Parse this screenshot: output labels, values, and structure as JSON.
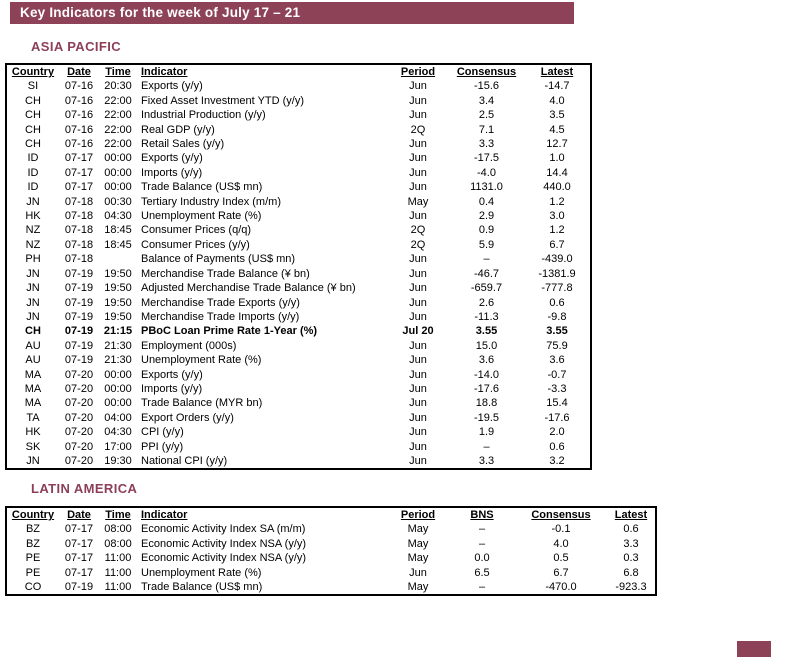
{
  "title_bar": {
    "text": "Key Indicators for the week of July 17 – 21"
  },
  "colors": {
    "accent_maroon": "#8E4257",
    "section_text": "#8C3F57",
    "table_border": "#000000",
    "title_text": "#FFFFFF"
  },
  "sections": [
    {
      "label": "ASIA PACIFIC",
      "columns": [
        "Country",
        "Date",
        "Time",
        "Indicator",
        "Period",
        "Consensus",
        "Latest"
      ],
      "bold_row_index": 17,
      "rows": [
        [
          "SI",
          "07-16",
          "20:30",
          "Exports (y/y)",
          "Jun",
          "-15.6",
          "-14.7"
        ],
        [
          "CH",
          "07-16",
          "22:00",
          "Fixed Asset Investment YTD (y/y)",
          "Jun",
          "3.4",
          "4.0"
        ],
        [
          "CH",
          "07-16",
          "22:00",
          "Industrial Production (y/y)",
          "Jun",
          "2.5",
          "3.5"
        ],
        [
          "CH",
          "07-16",
          "22:00",
          "Real GDP (y/y)",
          "2Q",
          "7.1",
          "4.5"
        ],
        [
          "CH",
          "07-16",
          "22:00",
          "Retail Sales (y/y)",
          "Jun",
          "3.3",
          "12.7"
        ],
        [
          "ID",
          "07-17",
          "00:00",
          "Exports (y/y)",
          "Jun",
          "-17.5",
          "1.0"
        ],
        [
          "ID",
          "07-17",
          "00:00",
          "Imports (y/y)",
          "Jun",
          "-4.0",
          "14.4"
        ],
        [
          "ID",
          "07-17",
          "00:00",
          "Trade Balance (US$ mn)",
          "Jun",
          "1131.0",
          "440.0"
        ],
        [
          "JN",
          "07-18",
          "00:30",
          "Tertiary Industry Index (m/m)",
          "May",
          "0.4",
          "1.2"
        ],
        [
          "HK",
          "07-18",
          "04:30",
          "Unemployment Rate (%)",
          "Jun",
          "2.9",
          "3.0"
        ],
        [
          "NZ",
          "07-18",
          "18:45",
          "Consumer Prices (q/q)",
          "2Q",
          "0.9",
          "1.2"
        ],
        [
          "NZ",
          "07-18",
          "18:45",
          "Consumer Prices (y/y)",
          "2Q",
          "5.9",
          "6.7"
        ],
        [
          "PH",
          "07-18",
          "",
          "Balance of Payments (US$ mn)",
          "Jun",
          "–",
          "-439.0"
        ],
        [
          "JN",
          "07-19",
          "19:50",
          "Merchandise Trade Balance (¥ bn)",
          "Jun",
          "-46.7",
          "-1381.9"
        ],
        [
          "JN",
          "07-19",
          "19:50",
          "Adjusted Merchandise Trade Balance (¥ bn)",
          "Jun",
          "-659.7",
          "-777.8"
        ],
        [
          "JN",
          "07-19",
          "19:50",
          "Merchandise Trade Exports (y/y)",
          "Jun",
          "2.6",
          "0.6"
        ],
        [
          "JN",
          "07-19",
          "19:50",
          "Merchandise Trade Imports (y/y)",
          "Jun",
          "-11.3",
          "-9.8"
        ],
        [
          "CH",
          "07-19",
          "21:15",
          "PBoC Loan Prime Rate 1-Year (%)",
          "Jul 20",
          "3.55",
          "3.55"
        ],
        [
          "AU",
          "07-19",
          "21:30",
          "Employment (000s)",
          "Jun",
          "15.0",
          "75.9"
        ],
        [
          "AU",
          "07-19",
          "21:30",
          "Unemployment Rate (%)",
          "Jun",
          "3.6",
          "3.6"
        ],
        [
          "MA",
          "07-20",
          "00:00",
          "Exports (y/y)",
          "Jun",
          "-14.0",
          "-0.7"
        ],
        [
          "MA",
          "07-20",
          "00:00",
          "Imports (y/y)",
          "Jun",
          "-17.6",
          "-3.3"
        ],
        [
          "MA",
          "07-20",
          "00:00",
          "Trade Balance (MYR bn)",
          "Jun",
          "18.8",
          "15.4"
        ],
        [
          "TA",
          "07-20",
          "04:00",
          "Export Orders (y/y)",
          "Jun",
          "-19.5",
          "-17.6"
        ],
        [
          "HK",
          "07-20",
          "04:30",
          "CPI (y/y)",
          "Jun",
          "1.9",
          "2.0"
        ],
        [
          "SK",
          "07-20",
          "17:00",
          "PPI (y/y)",
          "Jun",
          "–",
          "0.6"
        ],
        [
          "JN",
          "07-20",
          "19:30",
          "National CPI (y/y)",
          "Jun",
          "3.3",
          "3.2"
        ]
      ]
    },
    {
      "label": "LATIN AMERICA",
      "columns": [
        "Country",
        "Date",
        "Time",
        "Indicator",
        "Period",
        "BNS",
        "Consensus",
        "Latest"
      ],
      "bold_row_index": -1,
      "rows": [
        [
          "BZ",
          "07-17",
          "08:00",
          "Economic Activity Index SA (m/m)",
          "May",
          "–",
          "-0.1",
          "0.6"
        ],
        [
          "BZ",
          "07-17",
          "08:00",
          "Economic Activity Index NSA (y/y)",
          "May",
          "–",
          "4.0",
          "3.3"
        ],
        [
          "PE",
          "07-17",
          "11:00",
          "Economic Activity Index NSA (y/y)",
          "May",
          "0.0",
          "0.5",
          "0.3"
        ],
        [
          "PE",
          "07-17",
          "11:00",
          "Unemployment Rate (%)",
          "Jun",
          "6.5",
          "6.7",
          "6.8"
        ],
        [
          "CO",
          "07-19",
          "11:00",
          "Trade Balance (US$ mn)",
          "May",
          "–",
          "-470.0",
          "-923.3"
        ]
      ]
    }
  ]
}
